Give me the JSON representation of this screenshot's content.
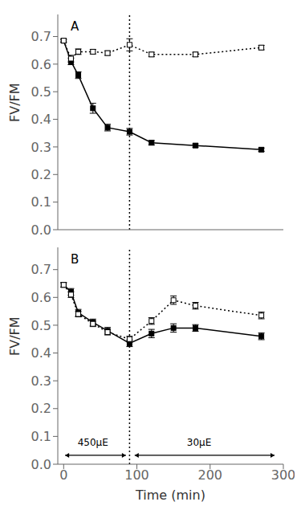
{
  "chart_data": [
    {
      "type": "line",
      "label": "A",
      "x": [
        0,
        10,
        20,
        40,
        60,
        90,
        120,
        180,
        270
      ],
      "series": [
        {
          "color": "#000000",
          "marker": "square",
          "line_style": "solid",
          "values": [
            0.685,
            0.61,
            0.56,
            0.44,
            0.37,
            0.355,
            0.315,
            0.305,
            0.29
          ],
          "errors": [
            0.005,
            0.012,
            0.012,
            0.018,
            0.012,
            0.012,
            0.008,
            0.006,
            0.006
          ]
        },
        {
          "color": "#000000",
          "marker": "open_square",
          "line_style": "dotted",
          "values": [
            0.685,
            0.62,
            0.645,
            0.645,
            0.64,
            0.67,
            0.635,
            0.635,
            0.66
          ],
          "errors": [
            0.005,
            0.012,
            0.01,
            0.008,
            0.008,
            0.022,
            0.008,
            0.008,
            0.008
          ]
        }
      ],
      "vline_x": 90,
      "xlim": [
        -8,
        300
      ],
      "xticks": [
        0,
        100,
        200,
        300
      ],
      "ylim": [
        0.0,
        0.78
      ],
      "yticks": [
        {
          "value": 0.0,
          "label": "0.0"
        },
        0.1,
        0.2,
        0.3,
        0.4,
        0.5,
        0.6,
        0.7
      ],
      "y_label": "FV/FM",
      "tick_labels": "y",
      "grid": false
    },
    {
      "type": "line",
      "label": "B",
      "x": [
        0,
        10,
        20,
        40,
        60,
        90,
        120,
        150,
        180,
        270
      ],
      "series": [
        {
          "color": "#000000",
          "marker": "square",
          "line_style": "solid",
          "values": [
            0.645,
            0.62,
            0.545,
            0.51,
            0.48,
            0.435,
            0.47,
            0.49,
            0.49,
            0.46
          ],
          "errors": [
            0.008,
            0.012,
            0.012,
            0.012,
            0.012,
            0.012,
            0.015,
            0.015,
            0.012,
            0.012
          ]
        },
        {
          "color": "#000000",
          "marker": "open_square",
          "line_style": "dotted",
          "values": [
            0.645,
            0.61,
            0.54,
            0.505,
            0.475,
            0.45,
            0.515,
            0.59,
            0.57,
            0.535
          ],
          "errors": [
            0.008,
            0.01,
            0.01,
            0.01,
            0.01,
            0.01,
            0.012,
            0.015,
            0.012,
            0.012
          ]
        }
      ],
      "vline_x": 90,
      "xlim": [
        -8,
        300
      ],
      "xticks": [
        0,
        100,
        200,
        300
      ],
      "ylim": [
        0.0,
        0.78
      ],
      "yticks": [
        {
          "value": 0.0,
          "label": "0.0"
        },
        0.1,
        0.2,
        0.3,
        0.4,
        0.5,
        0.6,
        0.7
      ],
      "x_label": "Time (min)",
      "y_label": "FV/FM",
      "arrows": [
        {
          "text": "450μE",
          "x": 40,
          "y": 0.06,
          "x_from": 2,
          "x_to": 85,
          "y_arrow": 0.032
        },
        {
          "text": "30μE",
          "x": 185,
          "y": 0.06,
          "x_from": 97,
          "x_to": 288,
          "y_arrow": 0.032
        }
      ],
      "grid": false
    }
  ]
}
